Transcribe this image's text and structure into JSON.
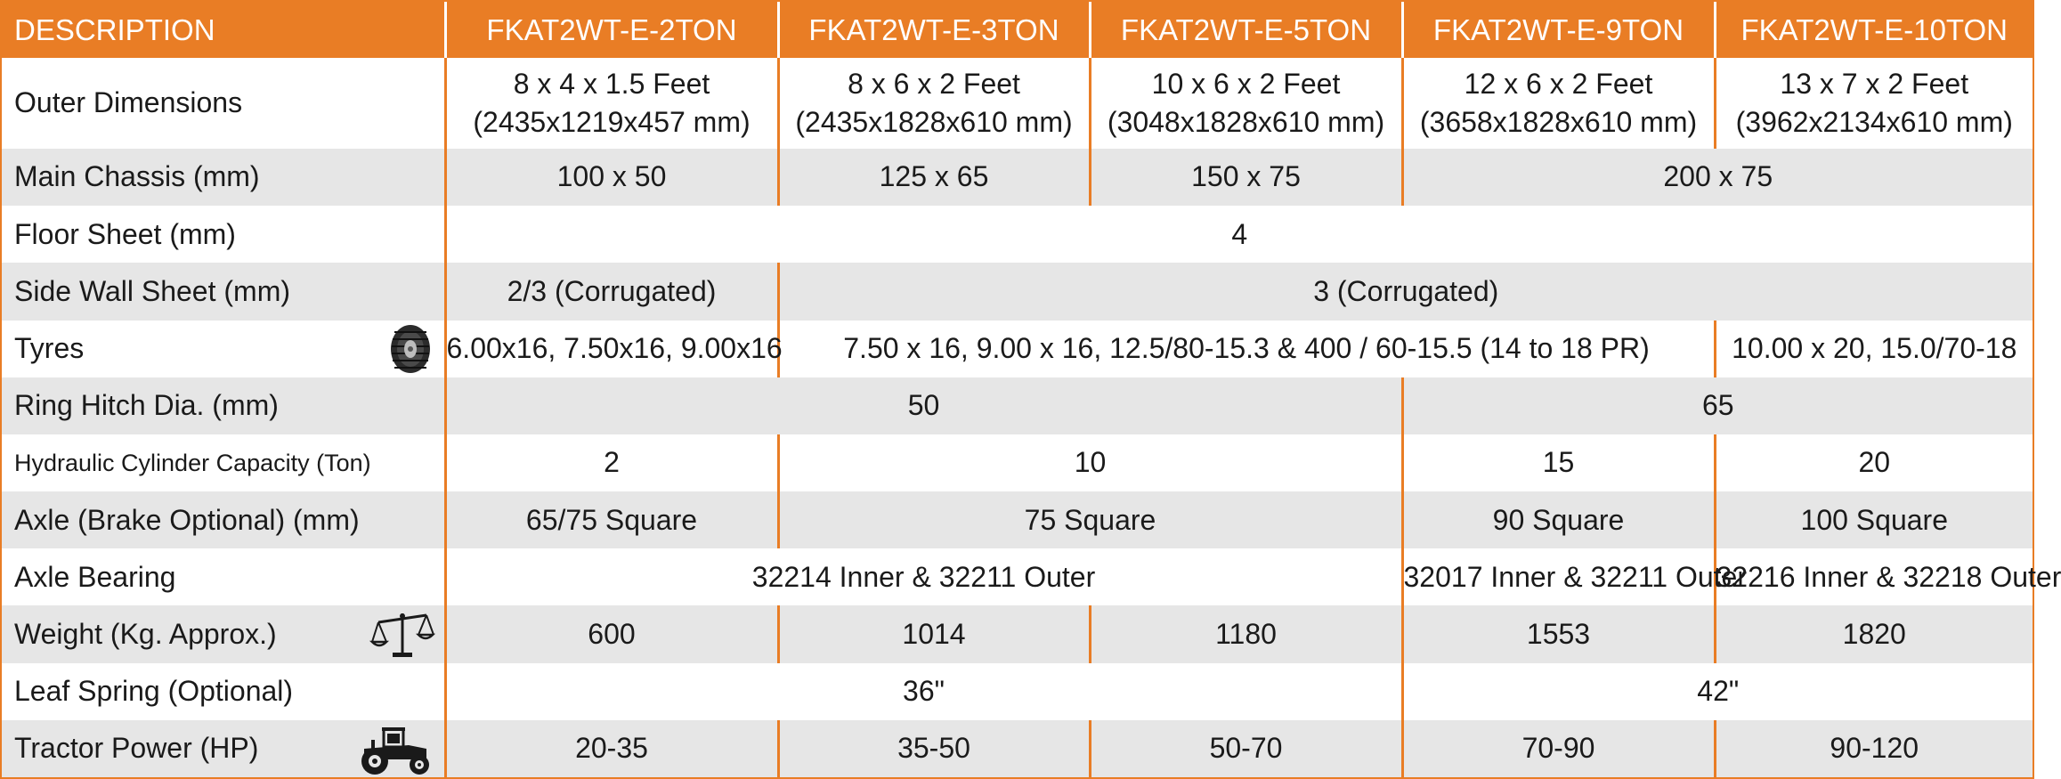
{
  "header": {
    "description": "DESCRIPTION",
    "models": [
      "FKAT2WT-E-2TON",
      "FKAT2WT-E-3TON",
      "FKAT2WT-E-5TON",
      "FKAT2WT-E-9TON",
      "FKAT2WT-E-10TON"
    ]
  },
  "rows": {
    "outer_dimensions": {
      "label": "Outer Dimensions",
      "values": [
        {
          "feet": "8 x 4 x 1.5 Feet",
          "mm": "(2435x1219x457 mm)"
        },
        {
          "feet": "8 x 6 x 2 Feet",
          "mm": "(2435x1828x610 mm)"
        },
        {
          "feet": "10 x 6 x 2 Feet",
          "mm": "(3048x1828x610 mm)"
        },
        {
          "feet": "12 x 6 x 2 Feet",
          "mm": "(3658x1828x610 mm)"
        },
        {
          "feet": "13 x 7 x 2 Feet",
          "mm": "(3962x2134x610 mm)"
        }
      ]
    },
    "main_chassis": {
      "label": "Main Chassis (mm)",
      "values": [
        "100 x 50",
        "125 x 65",
        "150 x 75",
        "200 x 75"
      ]
    },
    "floor_sheet": {
      "label": "Floor Sheet (mm)",
      "values": [
        "4"
      ]
    },
    "side_wall_sheet": {
      "label": "Side Wall Sheet (mm)",
      "values": [
        "2/3 (Corrugated)",
        "3 (Corrugated)"
      ]
    },
    "tyres": {
      "label": "Tyres",
      "icon": "tyre-icon",
      "values": [
        "6.00x16, 7.50x16, 9.00x16",
        "7.50 x 16, 9.00 x 16, 12.5/80-15.3 & 400 / 60-15.5 (14 to 18 PR)",
        "10.00 x 20, 15.0/70-18"
      ]
    },
    "ring_hitch": {
      "label": "Ring Hitch Dia. (mm)",
      "values": [
        "50",
        "65"
      ]
    },
    "hydraulic_cylinder": {
      "label": "Hydraulic Cylinder Capacity (Ton)",
      "values": [
        "2",
        "10",
        "15",
        "20"
      ]
    },
    "axle": {
      "label": "Axle (Brake Optional) (mm)",
      "values": [
        "65/75 Square",
        "75 Square",
        "90 Square",
        "100 Square"
      ]
    },
    "axle_bearing": {
      "label": "Axle Bearing",
      "values": [
        "32214 Inner & 32211 Outer",
        "32017 Inner & 32211 Outer",
        "32216 Inner & 32218 Outer"
      ]
    },
    "weight": {
      "label": "Weight (Kg. Approx.)",
      "icon": "scale-icon",
      "values": [
        "600",
        "1014",
        "1180",
        "1553",
        "1820"
      ]
    },
    "leaf_spring": {
      "label": "Leaf Spring (Optional)",
      "values": [
        "36\"",
        "42\""
      ]
    },
    "tractor_power": {
      "label": "Tractor Power (HP)",
      "icon": "tractor-icon",
      "values": [
        "20-35",
        "35-50",
        "50-70",
        "70-90",
        "90-120"
      ]
    }
  },
  "colors": {
    "accent": "#e97d25",
    "header_text": "#ffffff",
    "stripe": "#e6e6e6"
  }
}
